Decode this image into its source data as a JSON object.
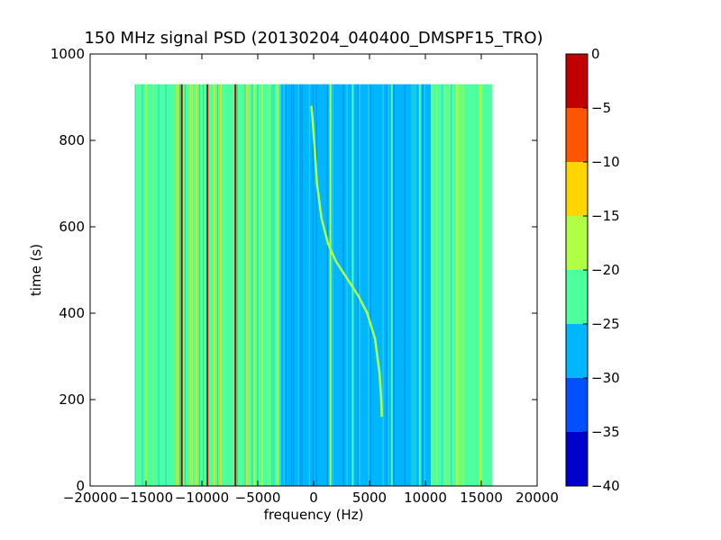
{
  "chart_data": {
    "type": "heatmap",
    "title": "150 MHz signal PSD (20130204_040400_DMSPF15_TRO)",
    "xlabel": "frequency (Hz)",
    "ylabel": "time (s)",
    "xlim": [
      -20000,
      20000
    ],
    "ylim": [
      0,
      1000
    ],
    "x_ticks": [
      -20000,
      -15000,
      -10000,
      -5000,
      0,
      5000,
      10000,
      15000,
      20000
    ],
    "y_ticks": [
      0,
      200,
      400,
      600,
      800,
      1000
    ],
    "data_extent": {
      "x": [
        -16000,
        16000
      ],
      "y": [
        0,
        930
      ]
    },
    "colorbar": {
      "range": [
        -40,
        0
      ],
      "ticks": [
        0,
        -5,
        -10,
        -15,
        -20,
        -25,
        -30,
        -35,
        -40
      ],
      "levels": [
        {
          "from": -40,
          "to": -35,
          "color": "#0000cc"
        },
        {
          "from": -35,
          "to": -30,
          "color": "#0050ff"
        },
        {
          "from": -30,
          "to": -25,
          "color": "#00b7ff"
        },
        {
          "from": -25,
          "to": -20,
          "color": "#4cff9f"
        },
        {
          "from": -20,
          "to": -15,
          "color": "#b0ff45"
        },
        {
          "from": -15,
          "to": -10,
          "color": "#ffd500"
        },
        {
          "from": -10,
          "to": -5,
          "color": "#ff5500"
        },
        {
          "from": -5,
          "to": 0,
          "color": "#c00000"
        }
      ]
    },
    "background_regions": [
      {
        "x": [
          -16000,
          -12500
        ],
        "level": -22
      },
      {
        "x": [
          -12500,
          -6500
        ],
        "level": -21
      },
      {
        "x": [
          -6500,
          -3000
        ],
        "level": -22
      },
      {
        "x": [
          -3000,
          1500
        ],
        "level": -28
      },
      {
        "x": [
          1500,
          6500
        ],
        "level": -27
      },
      {
        "x": [
          6500,
          10500
        ],
        "level": -25
      },
      {
        "x": [
          10500,
          16000
        ],
        "level": -22
      }
    ],
    "vertical_lines": [
      {
        "x": -15000,
        "level": -18
      },
      {
        "x": -12200,
        "level": -12
      },
      {
        "x": -11800,
        "level": -3
      },
      {
        "x": -11000,
        "level": -12
      },
      {
        "x": -10500,
        "level": -10
      },
      {
        "x": -9500,
        "level": -3
      },
      {
        "x": -8900,
        "level": -12
      },
      {
        "x": -8300,
        "level": -12
      },
      {
        "x": -7000,
        "level": -3
      },
      {
        "x": -6000,
        "level": -12
      },
      {
        "x": -5300,
        "level": -18
      },
      {
        "x": -4600,
        "level": -18
      },
      {
        "x": -3200,
        "level": -18
      },
      {
        "x": 1500,
        "level": -18
      },
      {
        "x": 3500,
        "level": -22
      },
      {
        "x": 7000,
        "level": -22
      },
      {
        "x": 9500,
        "level": -22
      },
      {
        "x": 12800,
        "level": -18
      },
      {
        "x": 14900,
        "level": -15
      }
    ],
    "doppler_track": {
      "level": -17,
      "x": [
        6100,
        6050,
        5900,
        5500,
        4800,
        4000,
        3000,
        2000,
        1300,
        700,
        300,
        100,
        -100,
        -200
      ],
      "y": [
        160,
        200,
        260,
        340,
        400,
        440,
        480,
        520,
        560,
        620,
        700,
        780,
        850,
        880
      ]
    }
  }
}
